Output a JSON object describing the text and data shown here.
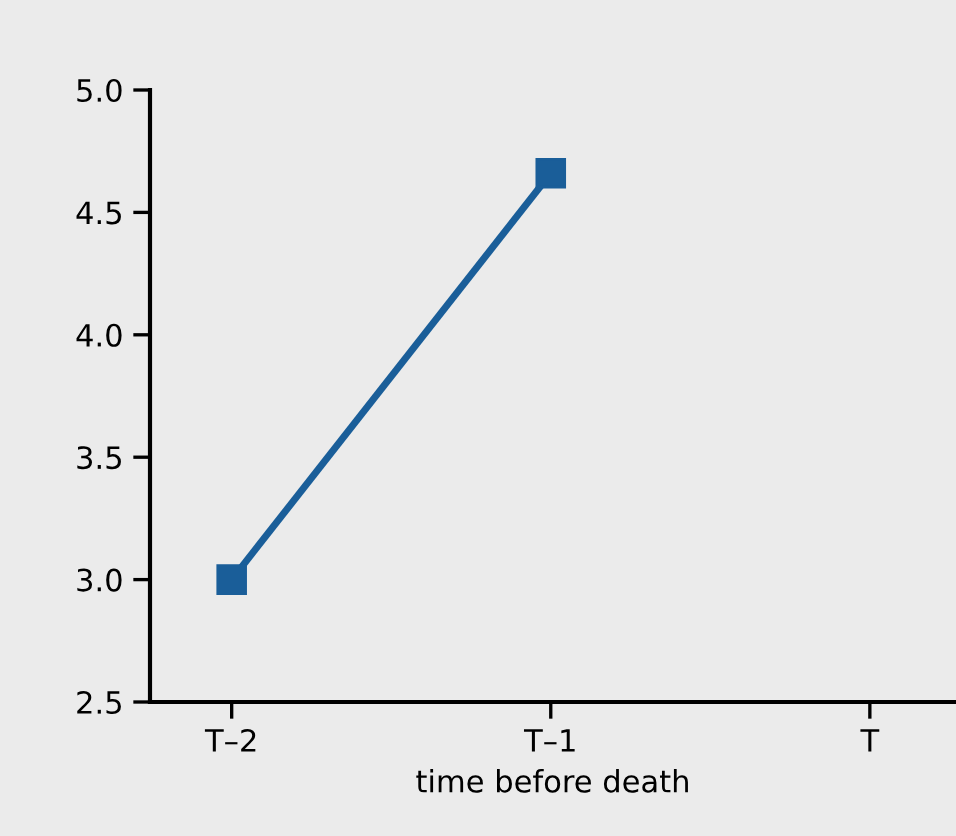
{
  "chart_data": {
    "type": "line",
    "xlabel": "time before death",
    "categories": [
      "T–2",
      "T–1",
      "T"
    ],
    "series": [
      {
        "color": "#1a5e99",
        "values": [
          3.0,
          4.66,
          null
        ]
      }
    ],
    "ylim": [
      2.5,
      5.0
    ],
    "yticks": [
      2.5,
      {
        "value": 3,
        "label": "3.0"
      },
      3.5,
      {
        "value": 4,
        "label": "4.0"
      },
      4.5,
      {
        "value": 5,
        "label": "5.0"
      }
    ],
    "marker": "square",
    "line_style": "solid",
    "grid": false,
    "legend": false
  }
}
